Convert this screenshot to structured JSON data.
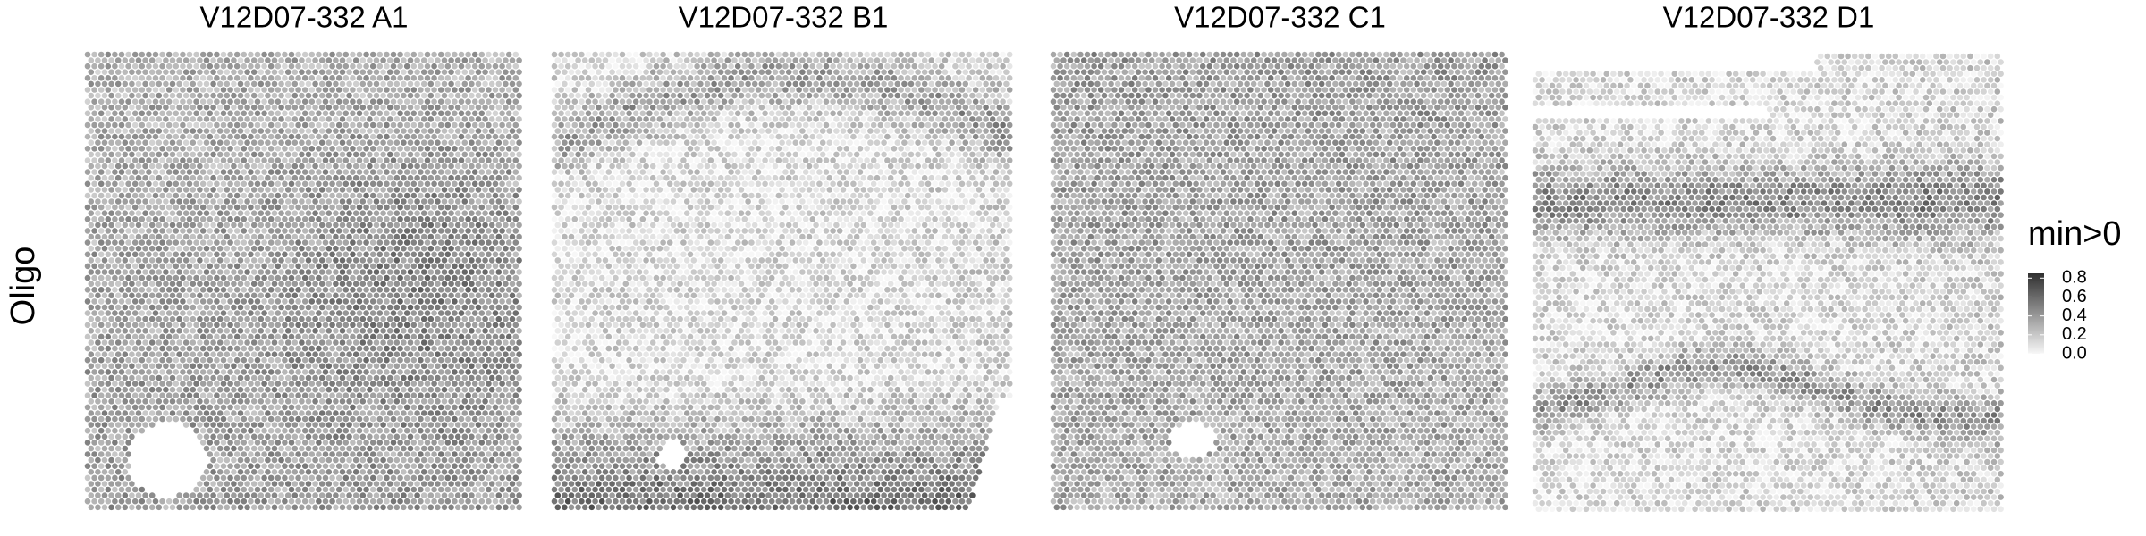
{
  "chart_data": {
    "type": "spatial",
    "ylabel": "Oligo",
    "panels": [
      "V12D07-332  A1",
      "V12D07-332  B1",
      "V12D07-332  C1",
      "V12D07-332  D1"
    ],
    "colorbar": {
      "title": "min>0",
      "lim": [
        0,
        0.85
      ],
      "colors": [
        "#f7f7f7",
        "#303030"
      ],
      "ticks": [
        {
          "value": 0,
          "label": "0.0"
        },
        {
          "value": 0.2,
          "label": "0.2"
        },
        {
          "value": 0.4,
          "label": "0.4"
        },
        {
          "value": 0.6,
          "label": "0.6"
        },
        {
          "value": 0.8,
          "label": "0.8"
        }
      ]
    }
  }
}
